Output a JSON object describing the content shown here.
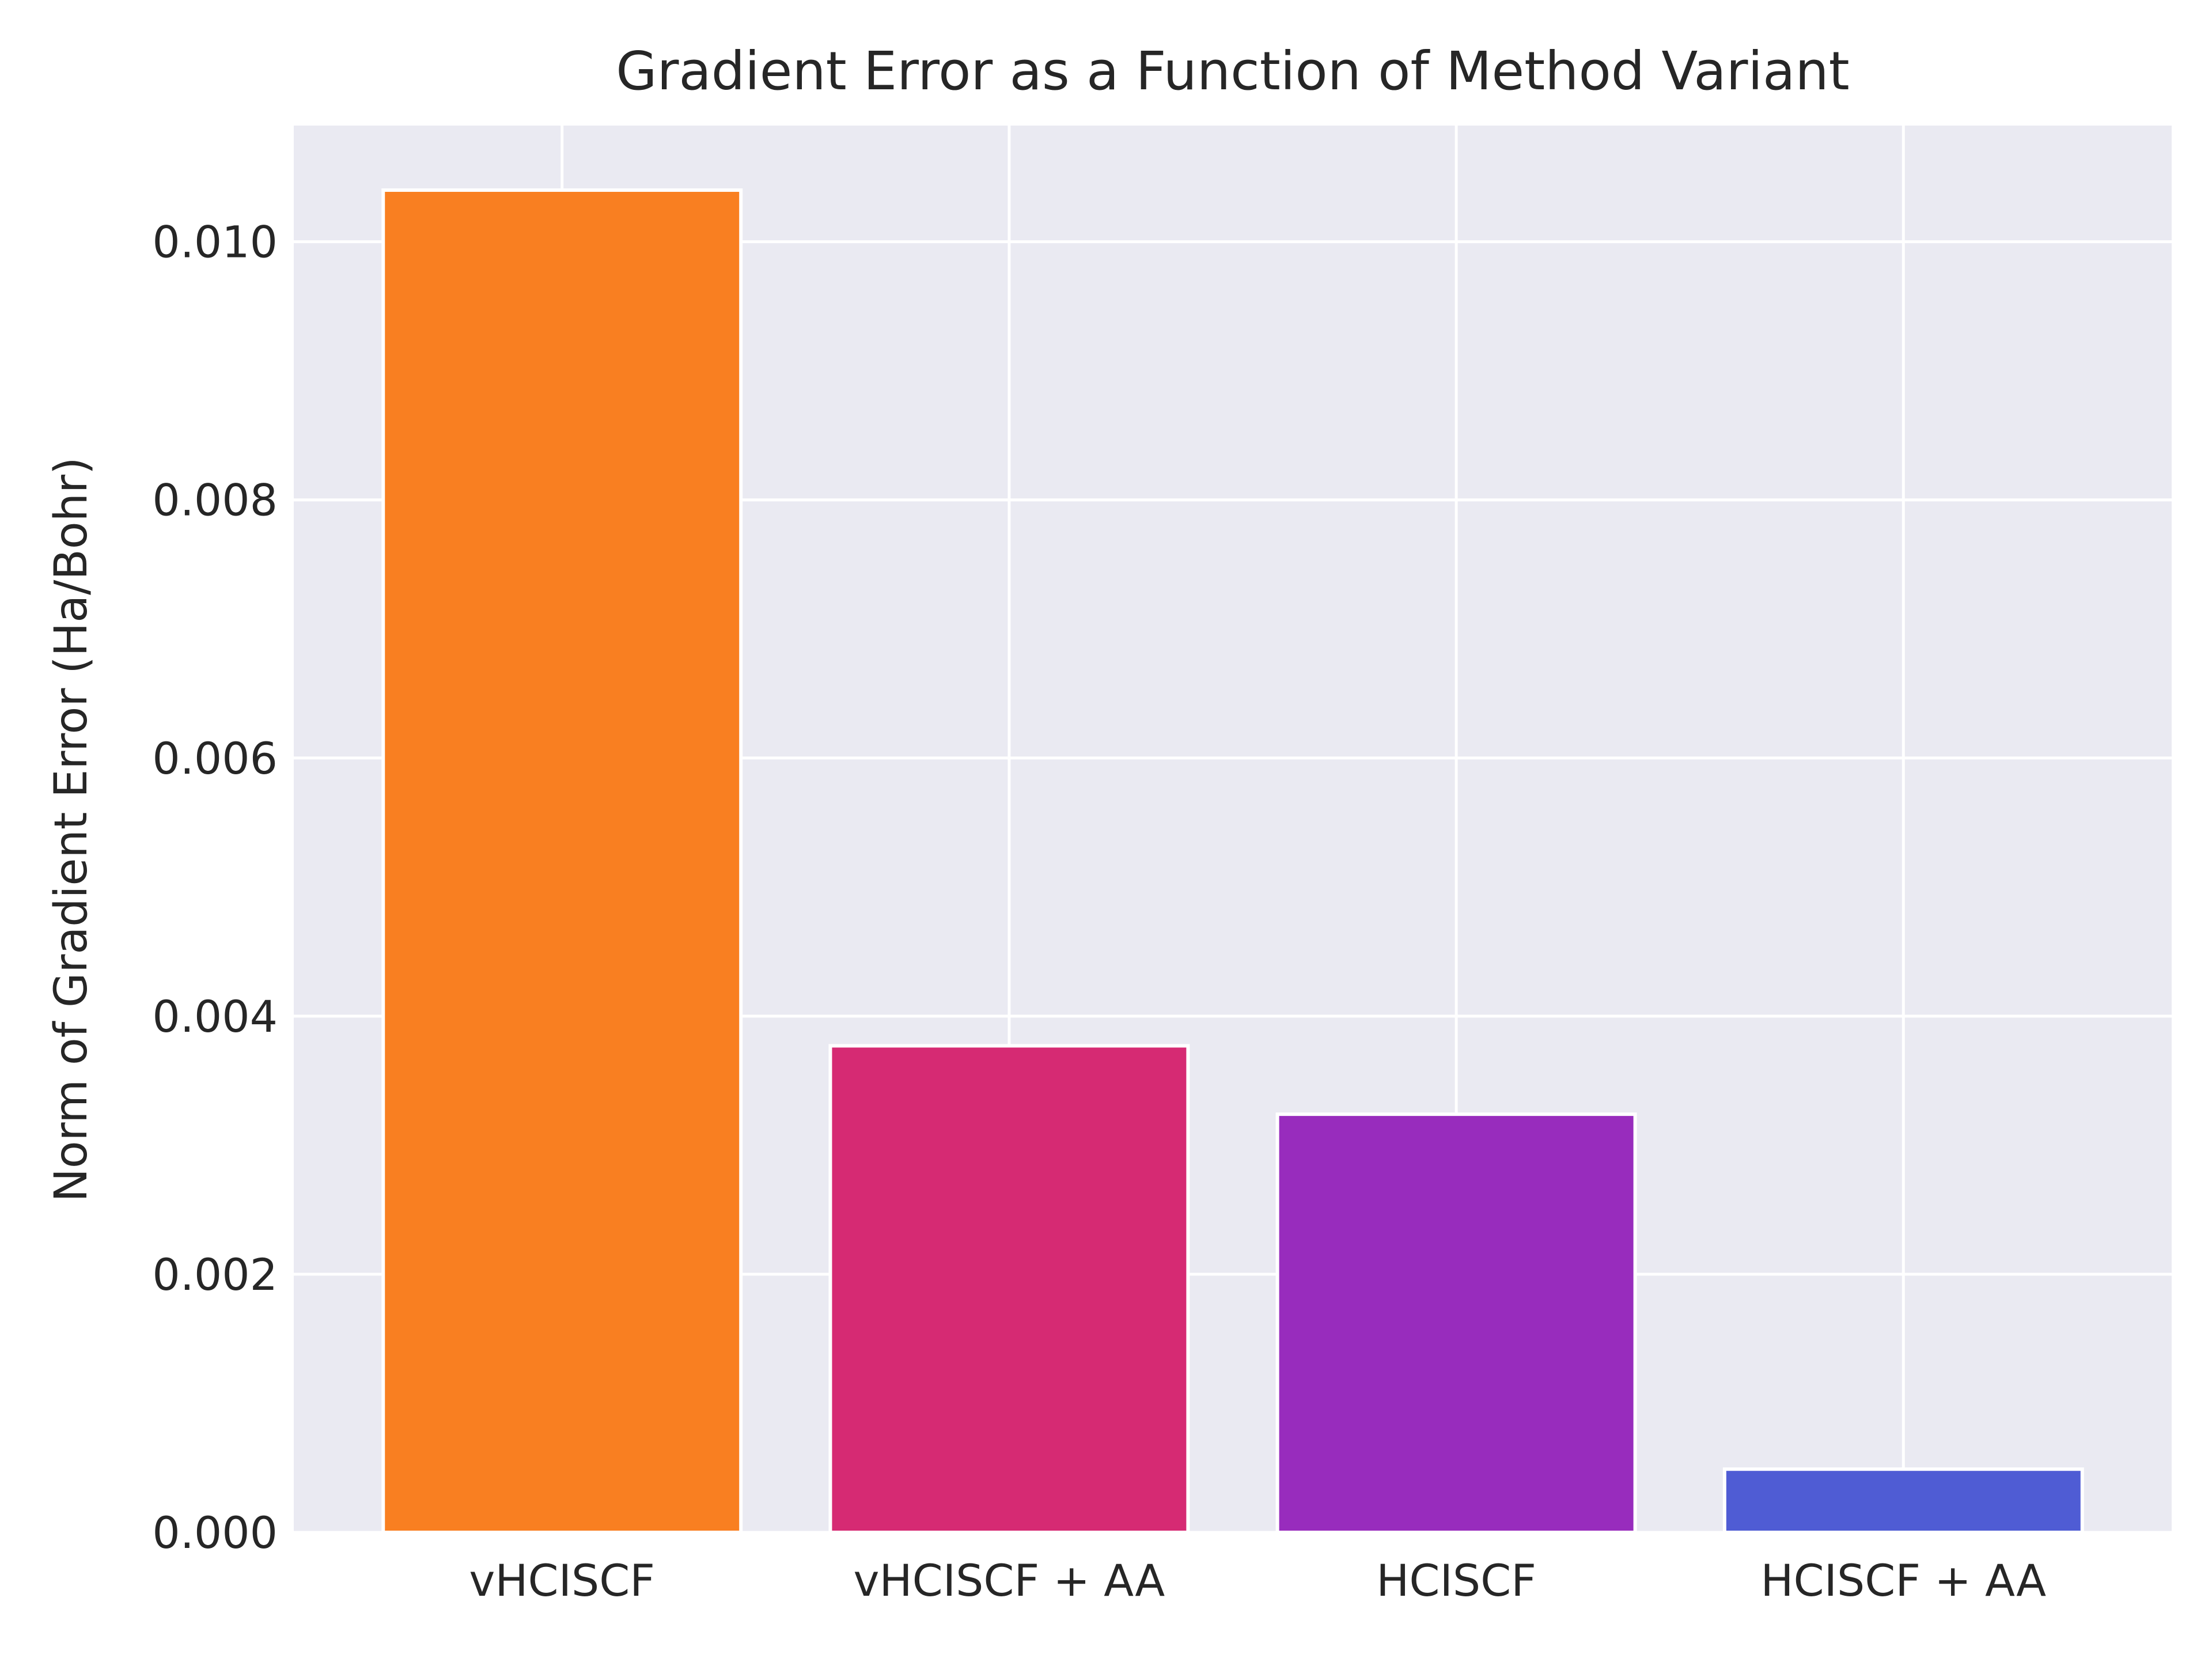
{
  "chart_data": {
    "type": "bar",
    "title": "Gradient Error as a Function of Method Variant",
    "xlabel": "",
    "ylabel": "Norm of Gradient Error (Ha/Bohr)",
    "categories": [
      "vHCISCF",
      "vHCISCF + AA",
      "HCISCF",
      "HCISCF + AA"
    ],
    "values": [
      0.0104,
      0.00377,
      0.00324,
      0.00049
    ],
    "colors": [
      "#f97f21",
      "#d62a73",
      "#982cbd",
      "#4f5cd4"
    ],
    "ylim": [
      0,
      0.0109
    ],
    "yticks": [
      "0.000",
      "0.002",
      "0.004",
      "0.006",
      "0.008",
      "0.010"
    ],
    "ytick_values": [
      0,
      0.002,
      0.004,
      0.006,
      0.008,
      0.01
    ],
    "grid": true,
    "background": "#eaeaf2"
  }
}
